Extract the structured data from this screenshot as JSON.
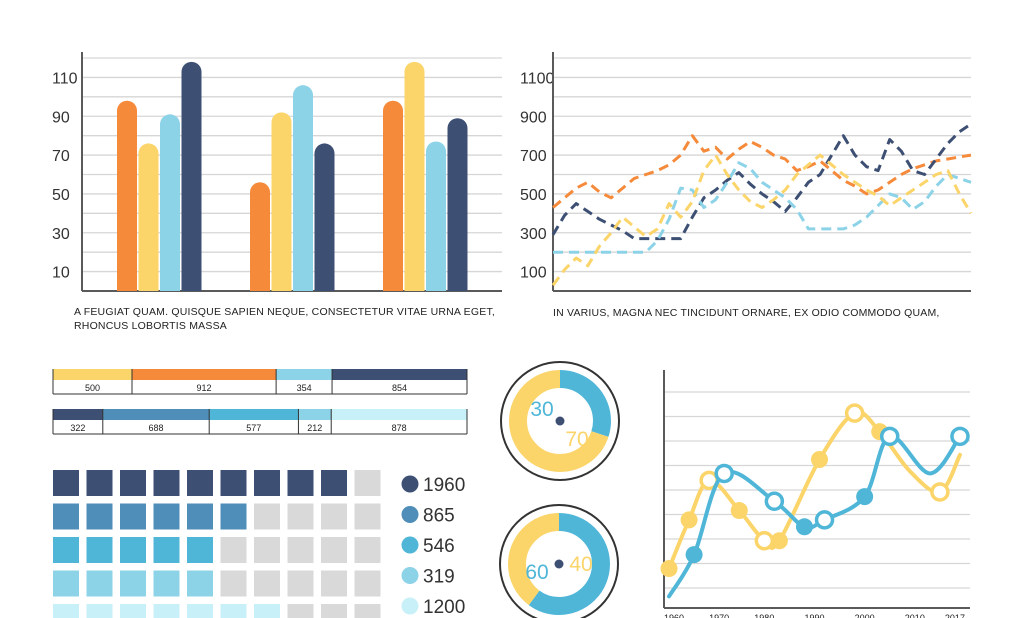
{
  "colors": {
    "orange": "#f58a3b",
    "yellow": "#fbd46a",
    "lightblue": "#8dd3e8",
    "navy": "#3d4f73",
    "teal": "#4fb6d8",
    "steel": "#4f8eb8",
    "grid": "#d6d6d6",
    "axis": "#5a5a5a",
    "empty": "#d9d9d9"
  },
  "captions": {
    "left": "A FEUGIAT QUAM. QUISQUE SAPIEN NEQUE, CONSECTETUR VITAE URNA EGET, RHONCUS LOBORTIS MASSA",
    "right": "IN VARIUS, MAGNA NEC TINCIDUNT ORNARE, EX ODIO COMMODO QUAM,"
  },
  "chart_data": [
    {
      "type": "bar",
      "name": "grouped-bar-chart",
      "ylim": [
        0,
        120
      ],
      "yticks": [
        10,
        30,
        50,
        70,
        90,
        110
      ],
      "groups": 3,
      "series": [
        {
          "name": "orange",
          "values": [
            98,
            56,
            98
          ]
        },
        {
          "name": "yellow",
          "values": [
            76,
            92,
            118
          ]
        },
        {
          "name": "lightblue",
          "values": [
            91,
            106,
            77
          ]
        },
        {
          "name": "navy",
          "values": [
            118,
            76,
            89
          ]
        }
      ]
    },
    {
      "type": "line",
      "name": "dashed-line-chart",
      "ylim": [
        0,
        1200
      ],
      "yticks": [
        100,
        300,
        500,
        700,
        900,
        1100
      ],
      "x": [
        0,
        1,
        2,
        3,
        4,
        5,
        6,
        7,
        8,
        9,
        10,
        11,
        12,
        13,
        14,
        15,
        16,
        17,
        18,
        19,
        20,
        21,
        22,
        23,
        24,
        25,
        26,
        27,
        28,
        29,
        30,
        31,
        32,
        33,
        34,
        35,
        36
      ],
      "series": [
        {
          "name": "orange",
          "values": [
            430,
            480,
            530,
            560,
            510,
            480,
            530,
            580,
            600,
            620,
            650,
            700,
            800,
            720,
            740,
            680,
            730,
            770,
            740,
            700,
            680,
            620,
            640,
            670,
            620,
            570,
            540,
            500,
            520,
            560,
            600,
            630,
            650,
            670,
            680,
            690,
            700
          ]
        },
        {
          "name": "navy",
          "values": [
            290,
            390,
            450,
            410,
            370,
            340,
            310,
            270,
            270,
            270,
            270,
            270,
            380,
            480,
            520,
            570,
            610,
            550,
            500,
            460,
            410,
            480,
            560,
            600,
            700,
            800,
            700,
            640,
            620,
            780,
            720,
            620,
            600,
            680,
            760,
            820,
            860
          ]
        },
        {
          "name": "lightblue",
          "values": [
            200,
            200,
            200,
            200,
            200,
            200,
            200,
            200,
            200,
            260,
            370,
            530,
            520,
            430,
            470,
            560,
            660,
            630,
            560,
            520,
            480,
            420,
            320,
            320,
            320,
            320,
            340,
            380,
            440,
            500,
            480,
            420,
            460,
            540,
            600,
            580,
            560
          ]
        },
        {
          "name": "yellow",
          "values": [
            30,
            110,
            170,
            130,
            230,
            300,
            380,
            330,
            280,
            320,
            450,
            380,
            460,
            620,
            700,
            600,
            520,
            460,
            430,
            470,
            520,
            600,
            650,
            700,
            650,
            600,
            560,
            520,
            490,
            440,
            480,
            520,
            560,
            600,
            620,
            500,
            400
          ]
        }
      ]
    },
    {
      "type": "bar",
      "name": "stacked-bar-1",
      "orientation": "horizontal",
      "segments": [
        {
          "value": 500,
          "label": "500",
          "color": "yellow"
        },
        {
          "value": 912,
          "label": "912",
          "color": "orange"
        },
        {
          "value": 354,
          "label": "354",
          "color": "lightblue"
        },
        {
          "value": 854,
          "label": "854",
          "color": "navy"
        }
      ]
    },
    {
      "type": "bar",
      "name": "stacked-bar-2",
      "orientation": "horizontal",
      "segments": [
        {
          "value": 322,
          "label": "322",
          "color": "#3d4f73"
        },
        {
          "value": 688,
          "label": "688",
          "color": "#4f8eb8"
        },
        {
          "value": 577,
          "label": "577",
          "color": "#4fb6d8"
        },
        {
          "value": 212,
          "label": "212",
          "color": "#8dd3e8"
        },
        {
          "value": 878,
          "label": "878",
          "color": "#c8f0f8"
        }
      ]
    },
    {
      "type": "heatmap",
      "name": "square-grid",
      "columns": 10,
      "rows": [
        {
          "filled": 9,
          "color": "#3d4f73",
          "legend": "1960"
        },
        {
          "filled": 6,
          "color": "#4f8eb8",
          "legend": "865"
        },
        {
          "filled": 5,
          "color": "#4fb6d8",
          "legend": "546"
        },
        {
          "filled": 5,
          "color": "#8dd3e8",
          "legend": "319"
        },
        {
          "filled": 7,
          "color": "#c8f0f8",
          "legend": "1200"
        }
      ]
    },
    {
      "type": "pie",
      "name": "donut-1",
      "slices": [
        {
          "label": "30",
          "value": 30,
          "color": "#4fb6d8"
        },
        {
          "label": "70",
          "value": 70,
          "color": "#fbd46a"
        }
      ]
    },
    {
      "type": "pie",
      "name": "donut-2",
      "slices": [
        {
          "label": "60",
          "value": 60,
          "color": "#4fb6d8"
        },
        {
          "label": "40",
          "value": 40,
          "color": "#fbd46a"
        }
      ]
    },
    {
      "type": "line",
      "name": "smooth-line-chart",
      "xticks": [
        "1960",
        "1970",
        "1980",
        "1990",
        "2000",
        "2010",
        "2017"
      ],
      "ylim": [
        0,
        100
      ],
      "series": [
        {
          "name": "yellow",
          "color": "#fbd46a",
          "x": [
            1961,
            1965,
            1969,
            1975,
            1980,
            1983,
            1991,
            1998,
            2003,
            2009,
            2015,
            2019
          ],
          "values": [
            17,
            38,
            55,
            42,
            29,
            29,
            64,
            84,
            76,
            59,
            50,
            66
          ],
          "markers": [
            1,
            1,
            0,
            1,
            0,
            1,
            1,
            0,
            1,
            0,
            0,
            0
          ],
          "hollow": [
            0,
            0,
            1,
            0,
            1,
            0,
            0,
            1,
            0,
            0,
            1,
            0
          ]
        },
        {
          "name": "blue",
          "color": "#4fb6d8",
          "x": [
            1961,
            1966,
            1972,
            1982,
            1988,
            1992,
            2000,
            2005,
            2013,
            2019
          ],
          "values": [
            5,
            23,
            58,
            46,
            35,
            38,
            48,
            74,
            58,
            74
          ],
          "markers": [
            0,
            1,
            0,
            0,
            1,
            0,
            1,
            0,
            0,
            0
          ],
          "hollow": [
            0,
            0,
            1,
            1,
            0,
            1,
            0,
            1,
            0,
            1
          ]
        }
      ]
    }
  ]
}
